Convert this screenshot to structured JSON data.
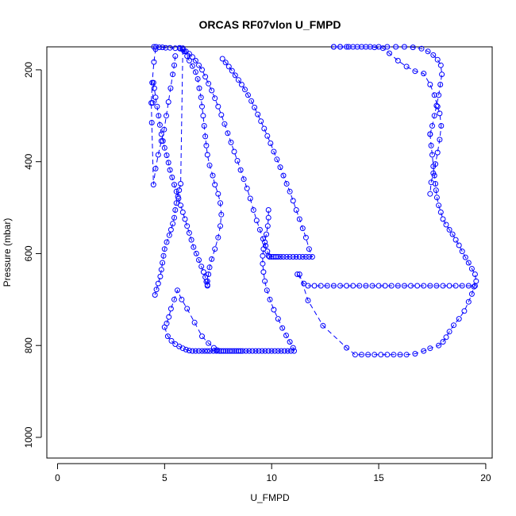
{
  "chart_data": {
    "type": "scatter",
    "title": "ORCAS RF07vlon U_FMPD",
    "xlabel": "U_FMPD",
    "ylabel": "Pressure (mbar)",
    "xlim": [
      -0.5,
      20.3
    ],
    "ylim": [
      1045,
      150
    ],
    "y_reversed": true,
    "x_ticks": [
      0,
      5,
      10,
      15,
      20
    ],
    "y_ticks": [
      200,
      400,
      600,
      800,
      1000
    ],
    "marker": "open-circle",
    "line": "dashed",
    "grid": false,
    "legend": "none",
    "colors": {
      "series": "#0000ff",
      "axis": "#000000",
      "background": "#ffffff"
    },
    "series": [
      {
        "x": [
          7.0,
          7.0,
          7.05,
          7.1,
          7.2,
          7.35,
          7.5,
          7.6,
          7.65,
          7.6,
          7.5,
          7.35,
          7.25,
          7.1,
          7.0,
          6.95,
          6.9,
          6.85,
          6.8,
          6.75,
          6.7,
          6.62,
          6.55,
          6.45,
          6.3,
          6.15,
          6.05,
          5.92,
          5.85,
          5.75,
          5.68,
          5.62,
          5.55,
          5.5,
          5.45,
          5.38,
          5.3,
          5.22,
          5.1,
          5.0,
          4.95,
          4.9,
          4.85,
          4.8,
          4.7,
          4.62,
          4.55
        ],
        "y": [
          668,
          660,
          645,
          630,
          612,
          590,
          565,
          540,
          515,
          490,
          470,
          450,
          430,
          408,
          385,
          365,
          345,
          322,
          300,
          280,
          260,
          240,
          220,
          205,
          192,
          180,
          170,
          160,
          153,
          448,
          462,
          476,
          490,
          505,
          522,
          535,
          548,
          560,
          575,
          590,
          605,
          620,
          635,
          650,
          665,
          678,
          690
        ]
      },
      {
        "x": [
          7.0,
          6.95,
          6.9,
          6.82,
          6.72,
          6.6,
          6.48,
          6.35,
          6.25,
          6.15,
          6.05,
          5.95,
          5.85,
          5.75,
          5.65,
          5.55,
          5.45,
          5.35,
          5.25,
          5.18,
          5.1,
          5.0,
          4.92,
          4.85,
          4.78,
          4.72,
          4.65,
          4.58,
          4.52,
          4.48,
          4.44
        ],
        "y": [
          670,
          661,
          651,
          640,
          628,
          614,
          600,
          586,
          570,
          555,
          540,
          525,
          510,
          495,
          480,
          465,
          450,
          434,
          418,
          402,
          386,
          370,
          355,
          340,
          320,
          300,
          280,
          260,
          240,
          228,
          272
        ]
      },
      {
        "x": [
          5.5,
          5.45,
          5.38,
          5.28,
          5.18,
          5.08,
          4.98,
          4.85,
          4.7,
          4.58,
          4.48,
          4.4,
          4.38,
          4.42,
          4.5,
          4.58
        ],
        "y": [
          170,
          190,
          210,
          240,
          270,
          300,
          330,
          355,
          385,
          415,
          450,
          315,
          272,
          228,
          183,
          155
        ]
      },
      {
        "x": [
          4.5,
          4.6,
          4.75,
          4.9,
          5.05,
          5.25,
          5.5,
          5.72
        ],
        "y": [
          150,
          150,
          151,
          151,
          152,
          152,
          153,
          154
        ]
      },
      {
        "x": [
          5.0,
          5.15,
          5.32,
          5.5,
          5.68,
          5.85,
          6.0,
          6.15,
          6.3,
          6.45,
          6.6,
          6.75,
          6.88,
          7.0,
          7.12,
          7.28,
          7.42,
          7.55,
          7.65,
          7.75,
          7.85,
          7.95,
          8.05,
          8.15,
          8.25,
          8.35,
          8.45,
          8.55,
          8.65
        ],
        "y": [
          760,
          780,
          790,
          797,
          802,
          806,
          809,
          811,
          812,
          812,
          812,
          812,
          812,
          812,
          812,
          812,
          812,
          812,
          812,
          812,
          812,
          812,
          812,
          812,
          812,
          812,
          812,
          812,
          812
        ]
      },
      {
        "x": [
          5.1,
          5.2,
          5.3,
          5.45,
          5.6,
          5.8,
          6.05,
          6.4,
          6.75,
          7.05,
          7.3,
          7.45,
          7.55
        ],
        "y": [
          752,
          738,
          720,
          700,
          680,
          700,
          720,
          750,
          780,
          795,
          805,
          810,
          812
        ]
      },
      {
        "x": [
          8.8,
          8.95,
          9.1,
          9.25,
          9.4,
          9.55,
          9.7,
          9.85,
          10.0,
          10.15,
          10.3,
          10.45,
          10.6,
          10.75,
          10.9,
          11.05,
          11.0,
          10.85,
          10.68,
          10.5,
          10.3,
          10.1,
          9.92,
          9.78,
          9.68,
          9.62,
          9.58,
          9.58,
          9.62,
          9.68,
          9.75,
          9.82,
          9.85,
          9.85
        ],
        "y": [
          812,
          812,
          812,
          812,
          812,
          812,
          812,
          812,
          812,
          812,
          812,
          812,
          812,
          812,
          812,
          812,
          805,
          792,
          778,
          762,
          742,
          722,
          700,
          680,
          660,
          640,
          622,
          605,
          590,
          575,
          558,
          540,
          522,
          505
        ]
      },
      {
        "x": [
          9.85,
          9.8,
          9.72,
          9.6,
          9.45,
          9.3,
          9.15,
          9.0,
          8.85,
          8.7,
          8.55,
          8.4,
          8.25,
          8.1,
          7.95,
          7.8,
          7.65,
          7.5,
          7.35,
          7.2,
          7.05,
          6.9,
          6.75,
          6.6,
          6.45,
          6.3,
          6.15,
          6.0,
          5.85,
          5.7
        ],
        "y": [
          605,
          595,
          583,
          568,
          548,
          528,
          505,
          480,
          458,
          438,
          418,
          398,
          378,
          358,
          338,
          318,
          298,
          280,
          262,
          245,
          230,
          215,
          200,
          190,
          180,
          172,
          165,
          160,
          156,
          152
        ]
      },
      {
        "x": [
          9.9,
          10.0,
          10.1,
          10.2,
          10.3,
          10.42,
          10.55,
          10.7,
          10.85,
          11.0,
          11.15,
          11.3,
          11.45,
          11.6,
          11.75,
          11.9,
          11.75,
          11.6,
          11.45,
          11.3,
          11.15,
          11.0,
          10.85,
          10.7,
          10.55,
          10.4,
          10.25,
          10.1,
          9.95,
          9.8,
          9.65,
          9.5,
          9.35,
          9.2,
          9.05,
          8.9,
          8.75,
          8.6,
          8.45,
          8.3,
          8.15,
          8.0,
          7.85,
          7.7
        ],
        "y": [
          607,
          607,
          607,
          607,
          607,
          607,
          607,
          607,
          607,
          607,
          607,
          607,
          607,
          607,
          607,
          607,
          590,
          565,
          545,
          525,
          505,
          485,
          465,
          448,
          430,
          412,
          395,
          378,
          360,
          344,
          328,
          312,
          297,
          282,
          268,
          255,
          243,
          232,
          222,
          212,
          202,
          193,
          184,
          176
        ]
      },
      {
        "x": [
          11.2,
          11.5,
          11.7,
          12.0,
          12.3,
          12.6,
          12.9,
          13.2,
          13.5,
          13.8,
          14.1,
          14.4,
          14.7,
          15.0,
          15.3,
          15.6,
          15.9,
          16.2,
          16.5,
          16.8,
          17.1,
          17.4,
          17.7,
          18.0,
          18.3,
          18.6,
          18.9,
          19.2,
          19.5
        ],
        "y": [
          645,
          665,
          670,
          670,
          670,
          670,
          670,
          670,
          670,
          670,
          670,
          670,
          670,
          670,
          670,
          670,
          670,
          670,
          670,
          670,
          670,
          670,
          670,
          670,
          670,
          670,
          670,
          670,
          670
        ]
      },
      {
        "x": [
          11.3,
          11.7,
          12.4,
          13.5,
          13.9,
          14.2,
          14.5,
          14.8,
          15.1,
          15.4,
          15.7,
          16.0,
          16.3,
          16.7,
          17.1,
          17.4,
          17.8,
          18.0,
          18.15,
          18.3,
          18.5,
          18.75,
          19.0,
          19.2,
          19.35,
          19.45,
          19.55,
          19.5,
          19.35,
          19.2,
          19.05,
          18.9,
          18.75,
          18.6,
          18.45,
          18.3,
          18.15,
          18.0,
          17.9,
          17.8,
          17.72,
          17.68,
          17.65,
          17.6,
          17.55,
          17.5,
          17.45,
          17.4
        ],
        "y": [
          645,
          702,
          757,
          805,
          820,
          820,
          820,
          820,
          820,
          820,
          820,
          820,
          820,
          818,
          812,
          806,
          800,
          792,
          782,
          770,
          756,
          742,
          725,
          705,
          688,
          672,
          660,
          645,
          633,
          620,
          608,
          595,
          582,
          570,
          558,
          548,
          537,
          525,
          510,
          495,
          478,
          462,
          448,
          430,
          410,
          385,
          365,
          340
        ]
      },
      {
        "x": [
          17.4,
          17.5,
          17.6,
          17.7,
          17.8,
          17.88,
          17.95,
          17.9,
          17.75,
          17.55,
          17.3,
          17.0,
          16.6,
          16.2,
          15.8,
          15.4,
          15.0,
          14.6,
          14.2,
          13.8,
          13.5,
          13.2,
          12.9
        ],
        "y": [
          340,
          322,
          300,
          278,
          255,
          232,
          210,
          190,
          178,
          168,
          160,
          154,
          151,
          150,
          150,
          150,
          150,
          150,
          150,
          150,
          150,
          150,
          150
        ]
      },
      {
        "x": [
          12.9,
          13.2,
          13.6,
          14.0,
          14.4,
          14.8,
          15.2,
          15.5,
          15.9,
          16.3,
          16.7,
          17.1,
          17.4,
          17.6,
          17.75,
          17.85,
          17.92,
          17.85,
          17.75,
          17.65,
          17.55,
          17.45,
          17.4
        ],
        "y": [
          150,
          150,
          150,
          150,
          150,
          151,
          153,
          164,
          180,
          193,
          203,
          208,
          232,
          255,
          280,
          295,
          322,
          352,
          380,
          405,
          425,
          445,
          470
        ]
      }
    ]
  }
}
